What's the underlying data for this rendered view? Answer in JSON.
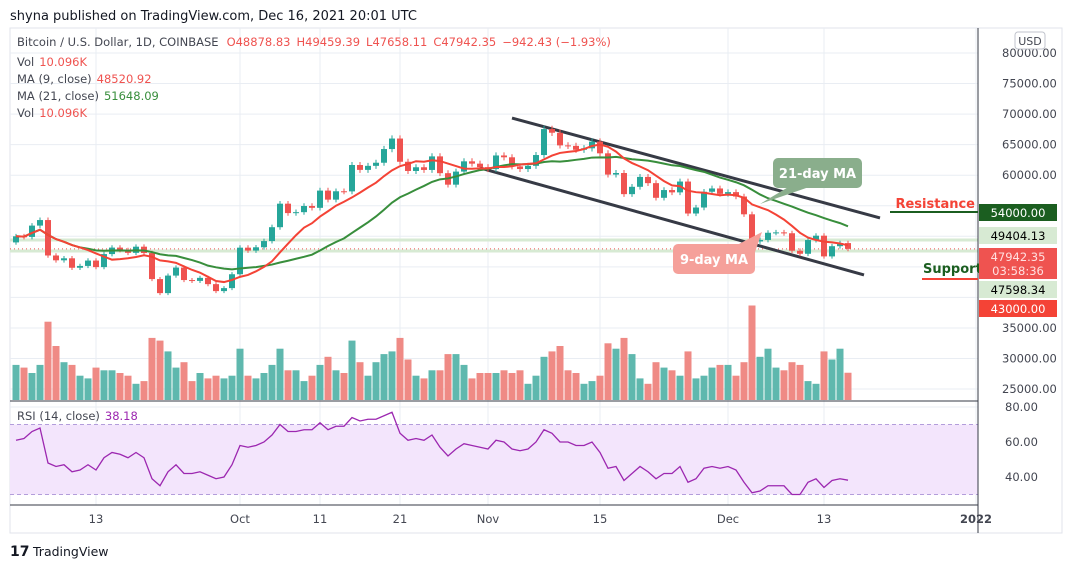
{
  "header": {
    "published": "shyna published on TradingView.com, Dec 16, 2021 20:01 UTC"
  },
  "legend": {
    "symbol": "Bitcoin / U.S. Dollar, 1D, COINBASE",
    "open": "O48878.83",
    "high": "H49459.39",
    "low": "L47658.11",
    "close": "C47942.35",
    "change": "−942.43 (−1.93%)",
    "vol_label": "Vol",
    "vol_value": "10.096K",
    "ma9_label": "MA (9, close)",
    "ma9_value": "48520.92",
    "ma21_label": "MA (21, close)",
    "ma21_value": "51648.09",
    "vol2_label": "Vol",
    "vol2_value": "10.096K",
    "rsi_label": "RSI (14, close)",
    "rsi_value": "38.18"
  },
  "currency_button": "USD",
  "price_axis": {
    "ticks": [
      "80000.00",
      "75000.00",
      "70000.00",
      "65000.00",
      "60000.00",
      "35000.00",
      "30000.00",
      "25000.00"
    ],
    "tick_values": [
      80000,
      75000,
      70000,
      65000,
      60000,
      35000,
      30000,
      25000
    ]
  },
  "price_labels": [
    {
      "text": "54000.00",
      "value": 54000,
      "bg": "#1b5e20",
      "fg": "#ffffff"
    },
    {
      "text": "49404.13",
      "value": 49404.13,
      "bg": "#d7ead3",
      "fg": "#000000"
    },
    {
      "text": "47942.35",
      "sub": "03:58:36",
      "value": 47942.35,
      "bg": "#ef5350",
      "fg": "#ffe0e0"
    },
    {
      "text": "47598.34",
      "value": 47598.34,
      "bg": "#d7ead3",
      "fg": "#000000"
    },
    {
      "text": "43000.00",
      "value": 43000,
      "bg": "#f44336",
      "fg": "#ffffff"
    }
  ],
  "rsi_axis": {
    "ticks": [
      "80.00",
      "60.00",
      "40.00"
    ],
    "tick_values": [
      80,
      60,
      40
    ]
  },
  "time_axis": {
    "ticks": [
      "13",
      "Oct",
      "11",
      "21",
      "Nov",
      "15",
      "Dec",
      "13",
      "2022"
    ]
  },
  "annotations": {
    "ma21": "21-day MA",
    "ma9": "9-day MA",
    "resistance": "Resistance",
    "support": "Support"
  },
  "footer": {
    "brand": "TradingView"
  },
  "colors": {
    "up": "#26a69a",
    "down": "#ef5350",
    "ma9": "#f44336",
    "ma21": "#388e3c",
    "rsi": "#9c27b0",
    "resistance_text": "#f44336",
    "support_text": "#1b5e20"
  },
  "chart_data": {
    "type": "candlestick",
    "symbol": "BTCUSD",
    "interval": "1D",
    "start_date": "2021-09-03",
    "end_date": "2021-12-16",
    "close": [
      50000,
      49900,
      51750,
      52660,
      46860,
      46070,
      46400,
      44850,
      45150,
      46030,
      44960,
      47090,
      48150,
      47750,
      47290,
      48300,
      47260,
      43000,
      40700,
      43570,
      44880,
      42840,
      42700,
      43200,
      42170,
      41030,
      41520,
      43790,
      48140,
      47660,
      48200,
      49220,
      51490,
      55340,
      53800,
      53950,
      54960,
      54660,
      57480,
      56000,
      57370,
      57350,
      61670,
      60870,
      61530,
      62040,
      64280,
      66000,
      62200,
      60690,
      61300,
      60860,
      63080,
      60330,
      58450,
      60590,
      62270,
      61890,
      61320,
      61000,
      63230,
      62930,
      61440,
      61010,
      61530,
      63300,
      67550,
      66950,
      64880,
      64800,
      64160,
      64400,
      65500,
      63580,
      60100,
      60360,
      56900,
      58100,
      59720,
      58700,
      56300,
      57570,
      57190,
      58960,
      53730,
      54710,
      57290,
      57830,
      56950,
      57230,
      56510,
      53600,
      49150,
      49400,
      50580,
      50640,
      50500,
      47640,
      47140,
      49390,
      50100,
      46710,
      48380,
      48890,
      47942.35
    ],
    "volume_k": [
      13,
      12,
      10,
      13,
      29,
      20,
      14,
      13,
      9,
      8,
      12,
      11,
      11,
      10,
      9,
      6,
      7,
      23,
      22,
      18,
      12,
      14,
      7,
      10,
      8,
      9,
      8,
      9,
      19,
      9,
      8,
      10,
      13,
      19,
      11,
      11,
      7,
      9,
      13,
      16,
      11,
      10,
      22,
      14,
      9,
      14,
      17,
      18,
      23,
      15,
      9,
      8,
      11,
      11,
      17,
      17,
      13,
      8,
      10,
      10,
      10,
      11,
      10,
      11,
      6,
      9,
      16,
      18,
      20,
      11,
      10,
      6,
      7,
      9,
      21,
      19,
      23,
      17,
      8,
      6,
      14,
      12,
      11,
      9,
      18,
      8,
      9,
      12,
      13,
      13,
      9,
      14,
      35,
      16,
      19,
      12,
      11,
      14,
      13,
      7,
      6,
      18,
      15,
      19,
      10.096
    ],
    "rsi": [
      61,
      62,
      66,
      68,
      48,
      46,
      47,
      43,
      44,
      47,
      44,
      51,
      54,
      53,
      51,
      54,
      51,
      39,
      35,
      43,
      47,
      42,
      42,
      43,
      41,
      39,
      40,
      47,
      58,
      57,
      58,
      60,
      64,
      70,
      66,
      66,
      67,
      67,
      71,
      67,
      69,
      69,
      74,
      72,
      73,
      73,
      75,
      77,
      65,
      61,
      62,
      61,
      64,
      57,
      52,
      56,
      59,
      58,
      57,
      56,
      61,
      60,
      56,
      55,
      56,
      60,
      67,
      65,
      60,
      60,
      58,
      58,
      60,
      54,
      45,
      46,
      38,
      42,
      46,
      43,
      39,
      42,
      42,
      46,
      37,
      39,
      45,
      46,
      45,
      46,
      44,
      37,
      31,
      32,
      35,
      35,
      35,
      30,
      30,
      37,
      39,
      34,
      38,
      39,
      38.18
    ],
    "ma_periods": [
      9,
      21
    ],
    "rsi_period": 14,
    "rsi_bands": [
      70,
      30
    ],
    "rsi_range": [
      20,
      80
    ],
    "price_range": [
      25000,
      80000
    ],
    "trendlines": [
      {
        "from": [
          "2021-11-04",
          69360
        ],
        "to": [
          "2021-12-20",
          53000
        ]
      },
      {
        "from": [
          "2021-10-31",
          61180
        ],
        "to": [
          "2021-12-18",
          43670
        ]
      }
    ],
    "levels": [
      {
        "name": "Resistance",
        "value": 54000
      },
      {
        "name": "Support",
        "value": 43000
      }
    ],
    "current_price": 47942.35
  }
}
